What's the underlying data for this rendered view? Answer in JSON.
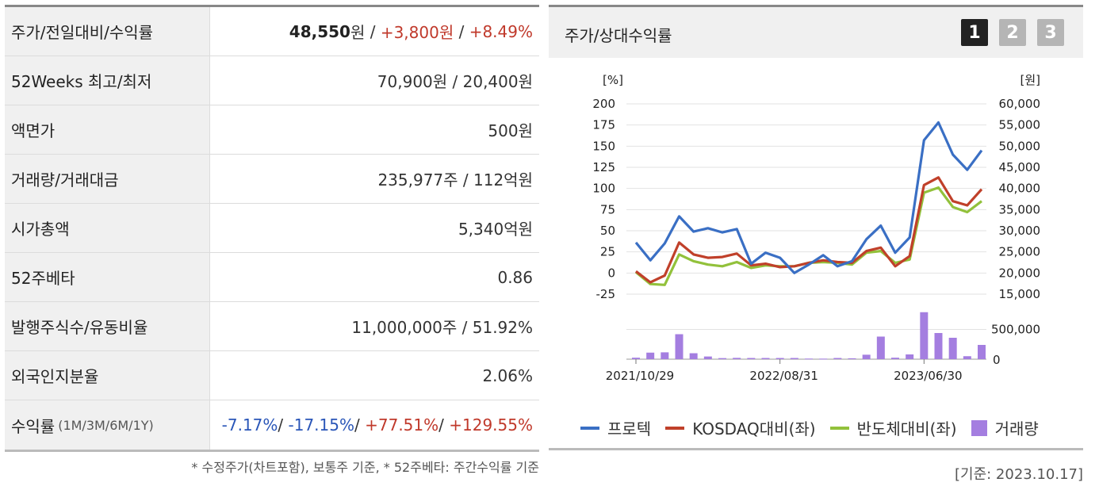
{
  "table": {
    "rows": [
      {
        "label": "주가/전일대비/수익률",
        "price": "48,550",
        "won": "원",
        "sep": " / ",
        "change": "+3,800원",
        "sep2": " / ",
        "rate": "+8.49%"
      },
      {
        "label": "52Weeks 최고/최저",
        "value": "70,900원 / 20,400원"
      },
      {
        "label": "액면가",
        "value": "500원"
      },
      {
        "label": "거래량/거래대금",
        "value": "235,977주 / 112억원"
      },
      {
        "label": "시가총액",
        "value": "5,340억원"
      },
      {
        "label": "52주베타",
        "value": "0.86"
      },
      {
        "label": "발행주식수/유동비율",
        "value": "11,000,000주 / 51.92%"
      },
      {
        "label": "외국인지분율",
        "value": "2.06%"
      }
    ],
    "returns": {
      "label": "수익률",
      "sub": "(1M/3M/6M/1Y)",
      "r1": "-7.17%",
      "s1": "/ ",
      "r2": "-17.15%",
      "s2": "/ ",
      "r3": "+77.51%",
      "s3": "/ ",
      "r4": "+129.55%"
    },
    "note": "* 수정주가(차트포함), 보통주 기준, * 52주베타: 주간수익률 기준"
  },
  "chart_panel": {
    "title": "주가/상대수익률",
    "pages": [
      "1",
      "2",
      "3"
    ],
    "active_page": "1",
    "basis": "[기준: 2023.10.17]"
  },
  "chart_data": {
    "type": "line",
    "left_unit": "[%]",
    "right_unit": "[원]",
    "y_ticks": [
      200,
      175,
      150,
      125,
      100,
      75,
      50,
      25,
      0,
      -25
    ],
    "y_tick_labels": [
      "200",
      "175",
      "150",
      "125",
      "100",
      "75",
      "50",
      "25",
      "0",
      "-25"
    ],
    "y_right_tick_labels": [
      "60,000",
      "55,000",
      "50,000",
      "45,000",
      "40,000",
      "35,000",
      "30,000",
      "25,000",
      "20,000",
      "15,000"
    ],
    "ylim": [
      -25,
      200
    ],
    "x_tick_labels": [
      {
        "index": 0,
        "label": "2021/10/29"
      },
      {
        "index": 10,
        "label": "2022/08/31"
      },
      {
        "index": 20,
        "label": "2023/06/30"
      }
    ],
    "series": [
      {
        "name": "프로텍",
        "color": "#3a6fc4",
        "values": [
          36,
          15,
          35,
          67,
          49,
          53,
          48,
          52,
          11,
          24,
          18,
          0,
          10,
          21,
          8,
          14,
          40,
          56,
          24,
          42,
          157,
          178,
          140,
          122,
          145
        ]
      },
      {
        "name": "KOSDAQ대비(좌)",
        "color": "#c0402a",
        "values": [
          2,
          -11,
          -3,
          36,
          22,
          18,
          19,
          23,
          9,
          11,
          7,
          8,
          12,
          15,
          13,
          12,
          26,
          30,
          8,
          20,
          104,
          113,
          85,
          80,
          99
        ]
      },
      {
        "name": "반도체대비(좌)",
        "color": "#92c13b",
        "values": [
          1,
          -13,
          -14,
          22,
          14,
          10,
          8,
          13,
          6,
          9,
          8,
          8,
          12,
          13,
          12,
          10,
          24,
          26,
          12,
          16,
          95,
          101,
          78,
          72,
          85
        ]
      }
    ],
    "volume": {
      "name": "거래량",
      "color": "#a47ee0",
      "tick_labels": [
        "500,000",
        "0"
      ],
      "ylim": [
        0,
        800000
      ],
      "values": [
        25000,
        110000,
        115000,
        420000,
        100000,
        45000,
        18000,
        22000,
        20000,
        20000,
        20000,
        20000,
        10000,
        9000,
        20000,
        15000,
        75000,
        380000,
        25000,
        80000,
        790000,
        440000,
        360000,
        50000,
        240000
      ]
    }
  }
}
